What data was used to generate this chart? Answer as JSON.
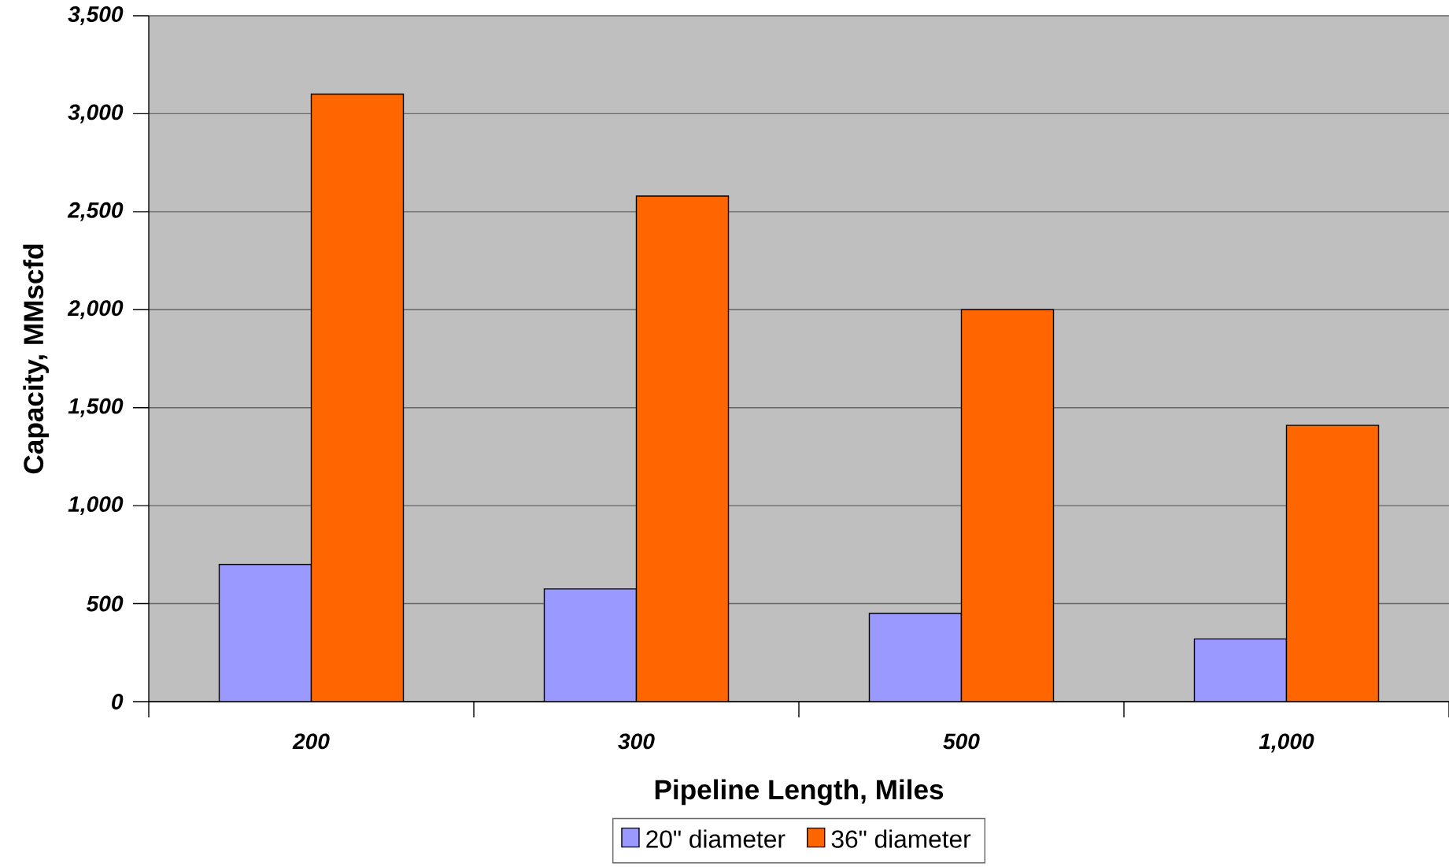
{
  "chart_data": {
    "type": "bar",
    "xlabel": "Pipeline Length,  Miles",
    "ylabel": "Capacity, MMscfd",
    "categories": [
      "200",
      "300",
      "500",
      "1,000"
    ],
    "series": [
      {
        "name": "20\" diameter",
        "color": "#9999ff",
        "values": [
          700,
          575,
          450,
          320
        ]
      },
      {
        "name": "36\" diameter",
        "color": "#ff6600",
        "values": [
          3100,
          2580,
          2000,
          1410
        ]
      }
    ],
    "ylim": [
      0,
      3500
    ],
    "yticks": [
      {
        "value": 0,
        "label": "0"
      },
      {
        "value": 500,
        "label": "500"
      },
      {
        "value": 1000,
        "label": "1,000"
      },
      {
        "value": 1500,
        "label": "1,500"
      },
      {
        "value": 2000,
        "label": "2,000"
      },
      {
        "value": 2500,
        "label": "2,500"
      },
      {
        "value": 3000,
        "label": "3,000"
      },
      {
        "value": 3500,
        "label": "3,500"
      }
    ],
    "grid": "y",
    "legend": "bottom"
  }
}
